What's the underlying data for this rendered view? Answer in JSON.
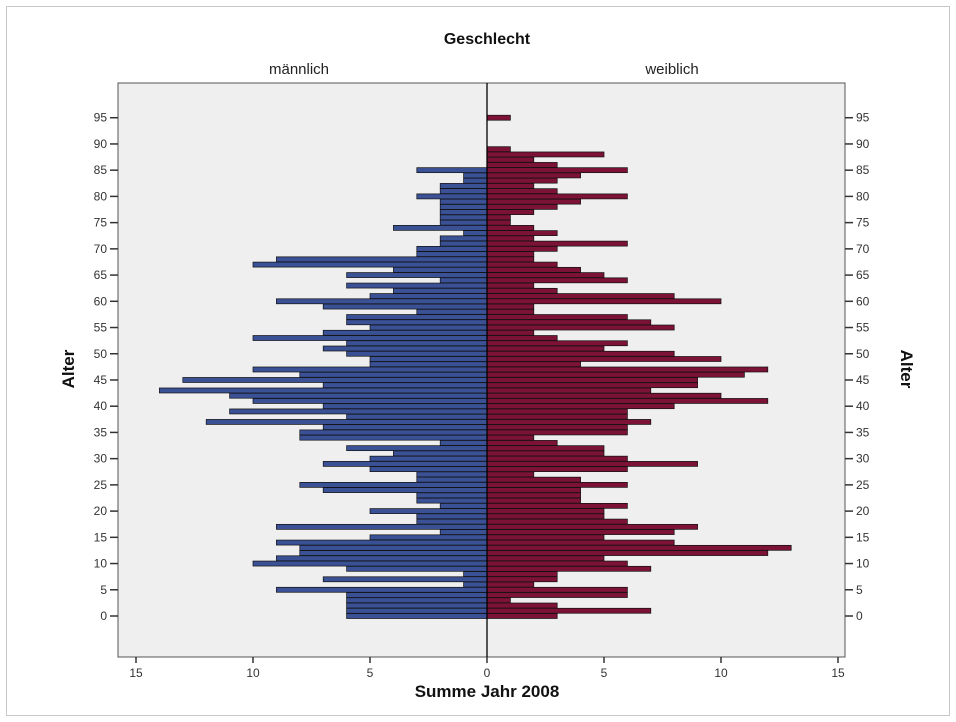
{
  "chart_data": {
    "type": "bar",
    "orientation": "horizontal",
    "title": "Geschlecht",
    "xlabel": "Summe Jahr 2008",
    "ylabel": "Alter",
    "panels": [
      "männlich",
      "weiblich"
    ],
    "xlim": [
      0,
      15
    ],
    "x_ticks": [
      15,
      10,
      5,
      0,
      5,
      10,
      15
    ],
    "ylim": [
      -5,
      100
    ],
    "y_ticks": [
      0,
      5,
      10,
      15,
      20,
      25,
      30,
      35,
      40,
      45,
      50,
      55,
      60,
      65,
      70,
      75,
      80,
      85,
      90,
      95
    ],
    "colors": {
      "männlich": "#3b5196",
      "weiblich": "#7c1336",
      "background": "#efefef"
    },
    "ages": [
      0,
      1,
      2,
      3,
      4,
      5,
      6,
      7,
      8,
      9,
      10,
      11,
      12,
      13,
      14,
      15,
      16,
      17,
      18,
      19,
      20,
      21,
      22,
      23,
      24,
      25,
      26,
      27,
      28,
      29,
      30,
      31,
      32,
      33,
      34,
      35,
      36,
      37,
      38,
      39,
      40,
      41,
      42,
      43,
      44,
      45,
      46,
      47,
      48,
      49,
      50,
      51,
      52,
      53,
      54,
      55,
      56,
      57,
      58,
      59,
      60,
      61,
      62,
      63,
      64,
      65,
      66,
      67,
      68,
      69,
      70,
      71,
      72,
      73,
      74,
      75,
      76,
      77,
      78,
      79,
      80,
      81,
      82,
      83,
      84,
      85,
      86,
      87,
      88,
      89,
      90,
      91,
      92,
      93,
      94,
      95
    ],
    "series": [
      {
        "name": "männlich",
        "values": [
          6,
          6,
          6,
          6,
          6,
          9,
          1,
          7,
          1,
          6,
          10,
          9,
          8,
          8,
          9,
          5,
          2,
          9,
          3,
          3,
          5,
          2,
          3,
          3,
          7,
          8,
          3,
          3,
          5,
          7,
          5,
          4,
          6,
          2,
          8,
          8,
          7,
          12,
          6,
          11,
          7,
          10,
          11,
          14,
          7,
          13,
          8,
          10,
          5,
          5,
          6,
          7,
          6,
          10,
          7,
          5,
          6,
          6,
          3,
          7,
          9,
          5,
          4,
          6,
          2,
          6,
          4,
          10,
          9,
          3,
          3,
          2,
          2,
          1,
          4,
          2,
          2,
          2,
          2,
          2,
          3,
          2,
          2,
          1,
          1,
          3,
          0,
          0,
          0,
          0,
          0,
          0,
          0,
          0,
          0,
          0
        ]
      },
      {
        "name": "weiblich",
        "values": [
          3,
          7,
          3,
          1,
          6,
          6,
          2,
          3,
          3,
          7,
          6,
          5,
          12,
          13,
          8,
          5,
          8,
          9,
          6,
          5,
          5,
          6,
          4,
          4,
          4,
          6,
          4,
          2,
          6,
          9,
          6,
          5,
          5,
          3,
          2,
          6,
          6,
          7,
          6,
          6,
          8,
          12,
          10,
          7,
          9,
          9,
          11,
          12,
          4,
          10,
          8,
          5,
          6,
          3,
          2,
          8,
          7,
          6,
          2,
          2,
          10,
          8,
          3,
          2,
          6,
          5,
          4,
          3,
          2,
          2,
          3,
          6,
          2,
          3,
          2,
          1,
          1,
          2,
          3,
          4,
          6,
          3,
          2,
          3,
          4,
          6,
          3,
          2,
          5,
          1,
          0,
          0,
          0,
          0,
          0,
          1
        ]
      }
    ]
  }
}
